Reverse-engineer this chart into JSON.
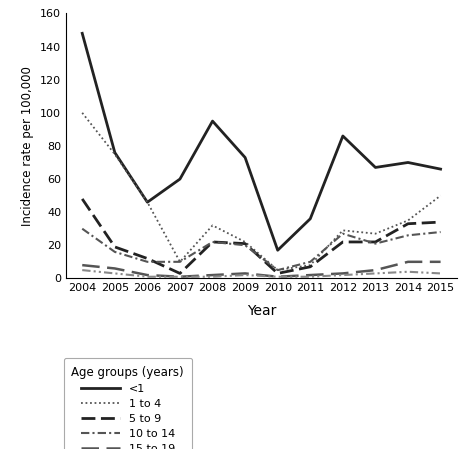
{
  "years": [
    2004,
    2005,
    2006,
    2007,
    2008,
    2009,
    2010,
    2011,
    2012,
    2013,
    2014,
    2015
  ],
  "series": {
    "<1": [
      148,
      76,
      46,
      60,
      95,
      73,
      17,
      36,
      86,
      67,
      70,
      66
    ],
    "1 to 4": [
      100,
      75,
      46,
      10,
      32,
      22,
      5,
      8,
      29,
      27,
      35,
      50
    ],
    "5 to 9": [
      48,
      19,
      12,
      3,
      22,
      21,
      3,
      7,
      22,
      22,
      33,
      34
    ],
    "10 to 14": [
      30,
      16,
      10,
      10,
      22,
      20,
      5,
      10,
      27,
      21,
      26,
      28
    ],
    "15 to 19": [
      8,
      6,
      2,
      1,
      2,
      3,
      1,
      2,
      3,
      5,
      10,
      10
    ],
    "20+": [
      5,
      3,
      1,
      1,
      1,
      2,
      1,
      1,
      2,
      3,
      4,
      3
    ]
  },
  "ylabel": "Incidence rate per 100,000",
  "xlabel": "Year",
  "ylim": [
    0,
    160
  ],
  "yticks": [
    0,
    20,
    40,
    60,
    80,
    100,
    120,
    140,
    160
  ],
  "legend_title": "Age groups (years)",
  "line_configs": {
    "<1": {
      "color": "#222222",
      "linewidth": 2.0,
      "linestyle": "solid"
    },
    "1 to 4": {
      "color": "#555555",
      "linewidth": 1.3,
      "linestyle": "dotted"
    },
    "5 to 9": {
      "color": "#222222",
      "linewidth": 2.0,
      "linestyle": "dashed"
    },
    "10 to 14": {
      "color": "#555555",
      "linewidth": 1.5,
      "linestyle": "dashdot_fine"
    },
    "15 to 19": {
      "color": "#555555",
      "linewidth": 1.8,
      "linestyle": "dashed_long"
    },
    "20+": {
      "color": "#888888",
      "linewidth": 1.5,
      "linestyle": "dashdot_coarse"
    }
  }
}
